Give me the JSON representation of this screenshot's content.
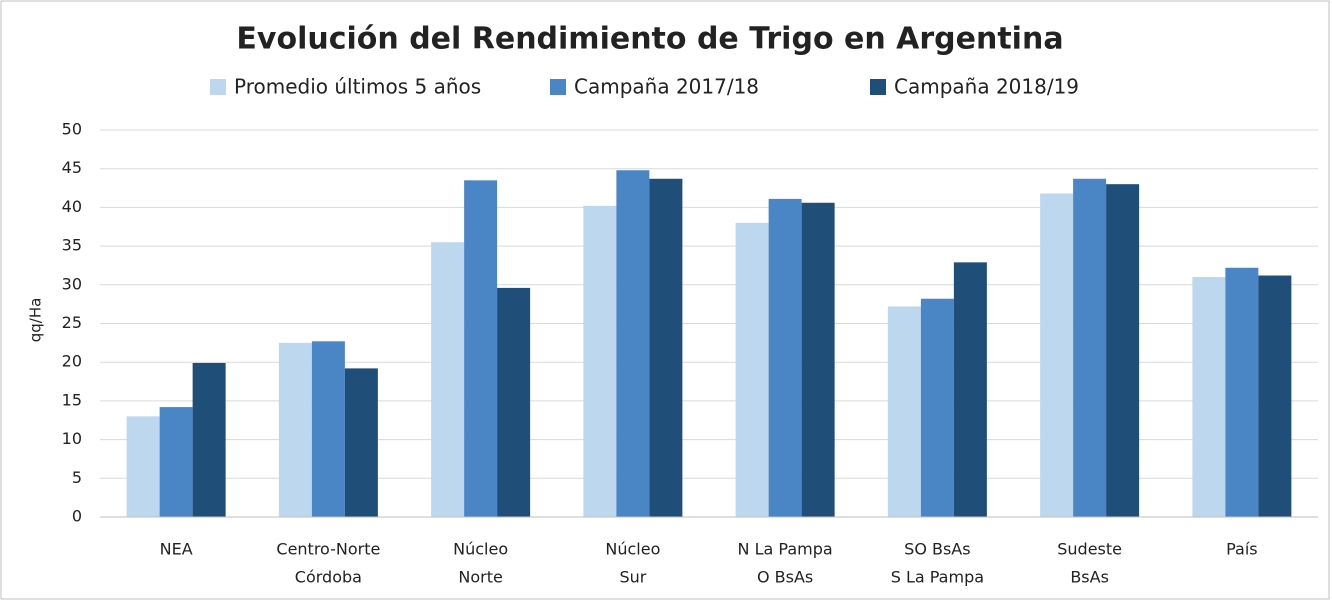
{
  "chart_data": {
    "type": "bar",
    "title": "Evolución del Rendimiento de Trigo en Argentina",
    "y_label": "qq/Ha",
    "categories": [
      [
        "NEA"
      ],
      [
        "Centro-Norte",
        "Córdoba"
      ],
      [
        "Núcleo",
        "Norte"
      ],
      [
        "Núcleo",
        "Sur"
      ],
      [
        "N La Pampa",
        "O BsAs"
      ],
      [
        "SO BsAs",
        "S La Pampa"
      ],
      [
        "Sudeste",
        "BsAs"
      ],
      [
        "País"
      ]
    ],
    "series": [
      {
        "name": "Promedio últimos 5 años",
        "color": "#bdd7ee",
        "values": [
          13,
          22.5,
          35.5,
          40.2,
          38,
          27.2,
          41.8,
          31
        ]
      },
      {
        "name": "Campaña 2017/18",
        "color": "#4a86c5",
        "values": [
          14.2,
          22.7,
          43.5,
          44.8,
          41.1,
          28.2,
          43.7,
          32.2
        ]
      },
      {
        "name": "Campaña 2018/19",
        "color": "#1f4e79",
        "values": [
          19.9,
          19.2,
          29.6,
          43.7,
          40.6,
          32.9,
          43,
          31.2
        ]
      }
    ],
    "ylim": [
      0,
      50
    ],
    "yticks": [
      0,
      5,
      10,
      15,
      20,
      25,
      30,
      35,
      40,
      45,
      50
    ],
    "grid": true,
    "legend": "top"
  }
}
